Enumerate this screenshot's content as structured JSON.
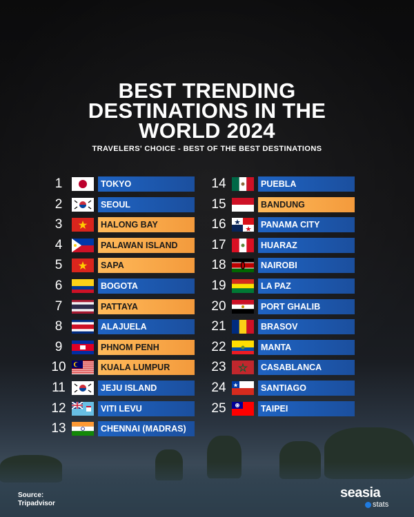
{
  "header": {
    "title_line1": "BEST TRENDING",
    "title_line2": "DESTINATIONS IN THE",
    "title_line3": "WORLD 2024",
    "subtitle": "TRAVELERS' CHOICE - BEST OF THE BEST DESTINATIONS"
  },
  "colors": {
    "blue": "#1f63c2",
    "orange": "#f7a84a"
  },
  "left_column": [
    {
      "rank": "1",
      "name": "TOKYO",
      "flag": "japan-flag",
      "style": "blue"
    },
    {
      "rank": "2",
      "name": "SEOUL",
      "flag": "south-korea-flag",
      "style": "blue"
    },
    {
      "rank": "3",
      "name": "HALONG BAY",
      "flag": "vietnam-flag",
      "style": "orange"
    },
    {
      "rank": "4",
      "name": "PALAWAN ISLAND",
      "flag": "philippines-flag",
      "style": "orange"
    },
    {
      "rank": "5",
      "name": "SAPA",
      "flag": "vietnam-flag",
      "style": "orange"
    },
    {
      "rank": "6",
      "name": "BOGOTA",
      "flag": "colombia-flag",
      "style": "blue"
    },
    {
      "rank": "7",
      "name": "PATTAYA",
      "flag": "thailand-flag",
      "style": "orange"
    },
    {
      "rank": "8",
      "name": "ALAJUELA",
      "flag": "costa-rica-flag",
      "style": "blue"
    },
    {
      "rank": "9",
      "name": "PHNOM PENH",
      "flag": "cambodia-flag",
      "style": "orange"
    },
    {
      "rank": "10",
      "name": "KUALA LUMPUR",
      "flag": "malaysia-flag",
      "style": "orange"
    },
    {
      "rank": "11",
      "name": "JEJU ISLAND",
      "flag": "south-korea-flag",
      "style": "blue"
    },
    {
      "rank": "12",
      "name": "VITI LEVU",
      "flag": "fiji-flag",
      "style": "blue"
    },
    {
      "rank": "13",
      "name": "CHENNAI (MADRAS)",
      "flag": "india-flag",
      "style": "blue"
    }
  ],
  "right_column": [
    {
      "rank": "14",
      "name": "PUEBLA",
      "flag": "mexico-flag",
      "style": "blue"
    },
    {
      "rank": "15",
      "name": "BANDUNG",
      "flag": "indonesia-flag",
      "style": "orange"
    },
    {
      "rank": "16",
      "name": "PANAMA CITY",
      "flag": "panama-flag",
      "style": "blue"
    },
    {
      "rank": "17",
      "name": "HUARAZ",
      "flag": "peru-flag",
      "style": "blue"
    },
    {
      "rank": "18",
      "name": "NAIROBI",
      "flag": "kenya-flag",
      "style": "blue"
    },
    {
      "rank": "19",
      "name": "LA PAZ",
      "flag": "bolivia-flag",
      "style": "blue"
    },
    {
      "rank": "20",
      "name": "PORT GHALIB",
      "flag": "egypt-flag",
      "style": "blue"
    },
    {
      "rank": "21",
      "name": "BRASOV",
      "flag": "romania-flag",
      "style": "blue"
    },
    {
      "rank": "22",
      "name": "MANTA",
      "flag": "ecuador-flag",
      "style": "blue"
    },
    {
      "rank": "23",
      "name": "CASABLANCA",
      "flag": "morocco-flag",
      "style": "blue"
    },
    {
      "rank": "24",
      "name": "SANTIAGO",
      "flag": "chile-flag",
      "style": "blue"
    },
    {
      "rank": "25",
      "name": "TAIPEI",
      "flag": "taiwan-flag",
      "style": "blue"
    }
  ],
  "footer": {
    "source_label": "Source:",
    "source_name": "Tripadvisor",
    "logo_main": "seasia",
    "logo_sub": "stats"
  }
}
